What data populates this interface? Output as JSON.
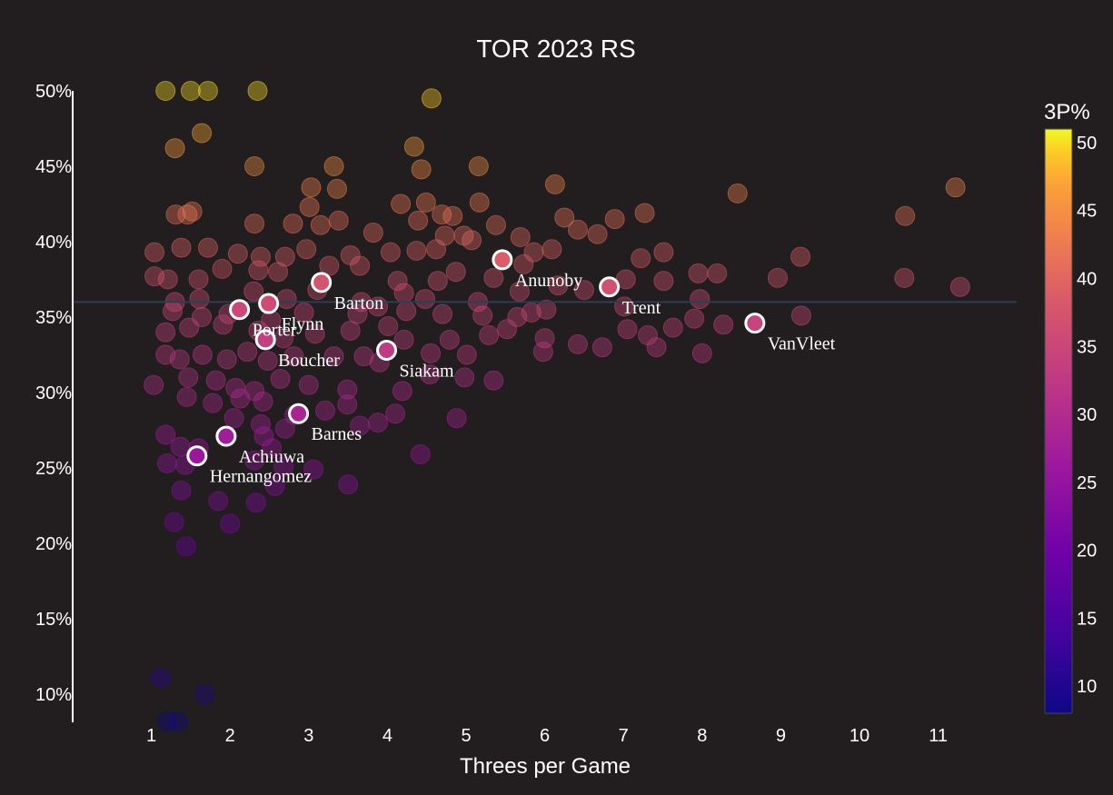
{
  "chart_data": {
    "type": "scatter",
    "title": "TOR 2023 RS",
    "xlabel": "Threes per Game",
    "ylabel": "",
    "xlim": [
      0,
      12
    ],
    "ylim": [
      8,
      50
    ],
    "x_ticks": [
      1,
      2,
      3,
      4,
      5,
      6,
      7,
      8,
      9,
      10,
      11
    ],
    "y_ticks": [
      10,
      15,
      20,
      25,
      30,
      35,
      40,
      45,
      50
    ],
    "y_tick_labels": [
      "10%",
      "15%",
      "20%",
      "25%",
      "30%",
      "35%",
      "40%",
      "45%",
      "50%"
    ],
    "reference_line_y": 36,
    "colorscale": "plasma",
    "colorbar": {
      "title": "3P%",
      "range": [
        8,
        51
      ],
      "ticks": [
        10,
        15,
        20,
        25,
        30,
        35,
        40,
        45,
        50
      ]
    },
    "highlighted": [
      {
        "name": "Anunoby",
        "x": 5.46,
        "y": 38.8
      },
      {
        "name": "Barton",
        "x": 3.16,
        "y": 37.3
      },
      {
        "name": "Trent",
        "x": 6.82,
        "y": 37.0
      },
      {
        "name": "Porter",
        "x": 2.12,
        "y": 35.5
      },
      {
        "name": "Flynn",
        "x": 2.49,
        "y": 35.9
      },
      {
        "name": "VanVleet",
        "x": 8.67,
        "y": 34.6
      },
      {
        "name": "Boucher",
        "x": 2.45,
        "y": 33.5
      },
      {
        "name": "Siakam",
        "x": 3.99,
        "y": 32.8
      },
      {
        "name": "Barnes",
        "x": 2.87,
        "y": 28.6
      },
      {
        "name": "Achiuwa",
        "x": 1.95,
        "y": 27.1
      },
      {
        "name": "Hernangomez",
        "x": 1.58,
        "y": 25.8
      }
    ],
    "background_points": [
      [
        1.18,
        50
      ],
      [
        1.5,
        50
      ],
      [
        1.72,
        50
      ],
      [
        2.35,
        50
      ],
      [
        4.56,
        49.5
      ],
      [
        1.3,
        46.2
      ],
      [
        1.64,
        47.2
      ],
      [
        2.31,
        45.0
      ],
      [
        4.34,
        46.3
      ],
      [
        4.43,
        44.8
      ],
      [
        5.16,
        45
      ],
      [
        6.13,
        43.8
      ],
      [
        8.45,
        43.2
      ],
      [
        11.22,
        43.6
      ],
      [
        10.58,
        41.7
      ],
      [
        3.03,
        43.6
      ],
      [
        3.32,
        45
      ],
      [
        3.36,
        43.5
      ],
      [
        4.17,
        42.5
      ],
      [
        4.49,
        42.6
      ],
      [
        5.17,
        42.6
      ],
      [
        3.01,
        42.3
      ],
      [
        4.69,
        41.8
      ],
      [
        4.83,
        41.7
      ],
      [
        6.25,
        41.6
      ],
      [
        6.89,
        41.5
      ],
      [
        7.27,
        41.9
      ],
      [
        1.31,
        41.8
      ],
      [
        1.52,
        42.0
      ],
      [
        1.46,
        41.8
      ],
      [
        2.31,
        41.2
      ],
      [
        2.8,
        41.2
      ],
      [
        3.15,
        41.1
      ],
      [
        3.38,
        41.4
      ],
      [
        3.82,
        40.6
      ],
      [
        4.39,
        41.4
      ],
      [
        4.73,
        40.4
      ],
      [
        4.97,
        40.4
      ],
      [
        5.38,
        41.1
      ],
      [
        5.69,
        40.3
      ],
      [
        6.42,
        40.8
      ],
      [
        6.67,
        40.5
      ],
      [
        1.04,
        39.3
      ],
      [
        1.38,
        39.6
      ],
      [
        1.72,
        39.6
      ],
      [
        2.1,
        39.2
      ],
      [
        2.39,
        39.0
      ],
      [
        2.7,
        39.0
      ],
      [
        2.97,
        39.5
      ],
      [
        3.53,
        39.1
      ],
      [
        4.04,
        39.3
      ],
      [
        4.37,
        39.4
      ],
      [
        4.62,
        39.5
      ],
      [
        5.07,
        40.1
      ],
      [
        5.86,
        39.3
      ],
      [
        6.09,
        39.5
      ],
      [
        7.22,
        38.9
      ],
      [
        7.51,
        39.3
      ],
      [
        9.25,
        39.0
      ],
      [
        1.04,
        37.7
      ],
      [
        1.21,
        37.5
      ],
      [
        1.6,
        37.5
      ],
      [
        1.9,
        38.2
      ],
      [
        2.36,
        38.1
      ],
      [
        2.61,
        38.0
      ],
      [
        3.26,
        38.4
      ],
      [
        3.65,
        38.4
      ],
      [
        4.13,
        37.4
      ],
      [
        4.64,
        37.4
      ],
      [
        4.87,
        38.0
      ],
      [
        5.35,
        37.6
      ],
      [
        5.73,
        38.5
      ],
      [
        6.17,
        37.1
      ],
      [
        7.03,
        37.5
      ],
      [
        7.51,
        37.4
      ],
      [
        7.95,
        37.9
      ],
      [
        8.19,
        37.9
      ],
      [
        8.96,
        37.6
      ],
      [
        10.57,
        37.6
      ],
      [
        11.28,
        37.0
      ],
      [
        1.3,
        36.0
      ],
      [
        1.61,
        36.2
      ],
      [
        2.3,
        36.7
      ],
      [
        2.72,
        36.2
      ],
      [
        3.11,
        36.8
      ],
      [
        3.67,
        36.0
      ],
      [
        4.21,
        36.6
      ],
      [
        4.48,
        36.2
      ],
      [
        5.15,
        36.0
      ],
      [
        5.68,
        36.7
      ],
      [
        6.5,
        36.8
      ],
      [
        7.01,
        35.7
      ],
      [
        7.97,
        36.2
      ],
      [
        9.26,
        35.1
      ],
      [
        1.27,
        35.4
      ],
      [
        1.64,
        35.0
      ],
      [
        1.98,
        35.2
      ],
      [
        2.52,
        34.8
      ],
      [
        2.94,
        35.3
      ],
      [
        3.62,
        35.2
      ],
      [
        3.88,
        35.7
      ],
      [
        4.24,
        35.4
      ],
      [
        4.7,
        35.2
      ],
      [
        5.21,
        35.1
      ],
      [
        5.65,
        35.0
      ],
      [
        5.83,
        35.3
      ],
      [
        6.02,
        35.5
      ],
      [
        7.05,
        34.2
      ],
      [
        7.9,
        34.9
      ],
      [
        8.27,
        34.5
      ],
      [
        1.18,
        34.0
      ],
      [
        1.48,
        34.3
      ],
      [
        1.91,
        34.5
      ],
      [
        2.36,
        34.1
      ],
      [
        2.68,
        33.6
      ],
      [
        3.08,
        33.9
      ],
      [
        3.53,
        34.1
      ],
      [
        4.01,
        34.4
      ],
      [
        4.21,
        33.5
      ],
      [
        4.79,
        33.5
      ],
      [
        5.29,
        33.8
      ],
      [
        5.52,
        34.2
      ],
      [
        6.0,
        33.6
      ],
      [
        6.42,
        33.2
      ],
      [
        6.73,
        33.0
      ],
      [
        7.31,
        33.8
      ],
      [
        7.63,
        34.3
      ],
      [
        1.18,
        32.5
      ],
      [
        1.36,
        32.2
      ],
      [
        1.65,
        32.5
      ],
      [
        1.96,
        32.2
      ],
      [
        2.22,
        32.7
      ],
      [
        2.48,
        32.1
      ],
      [
        2.81,
        32.4
      ],
      [
        3.32,
        32.4
      ],
      [
        3.7,
        32.4
      ],
      [
        3.9,
        32.0
      ],
      [
        4.55,
        32.6
      ],
      [
        5.01,
        32.5
      ],
      [
        5.98,
        32.7
      ],
      [
        7.42,
        33.0
      ],
      [
        8.0,
        32.6
      ],
      [
        1.03,
        30.5
      ],
      [
        1.47,
        31.0
      ],
      [
        1.82,
        30.8
      ],
      [
        2.07,
        30.3
      ],
      [
        2.31,
        30.1
      ],
      [
        2.64,
        30.9
      ],
      [
        3.0,
        30.5
      ],
      [
        3.49,
        30.2
      ],
      [
        4.19,
        30.1
      ],
      [
        4.54,
        31.2
      ],
      [
        4.98,
        31.0
      ],
      [
        5.35,
        30.8
      ],
      [
        1.45,
        29.7
      ],
      [
        1.78,
        29.3
      ],
      [
        2.13,
        29.6
      ],
      [
        2.42,
        29.4
      ],
      [
        2.82,
        28.5
      ],
      [
        3.21,
        28.8
      ],
      [
        3.49,
        29.2
      ],
      [
        4.1,
        28.6
      ],
      [
        4.88,
        28.3
      ],
      [
        2.05,
        28.3
      ],
      [
        2.39,
        27.9
      ],
      [
        2.7,
        27.6
      ],
      [
        3.65,
        27.8
      ],
      [
        3.88,
        28.0
      ],
      [
        1.18,
        27.2
      ],
      [
        1.37,
        26.4
      ],
      [
        1.6,
        26.3
      ],
      [
        2.43,
        27.1
      ],
      [
        2.53,
        26.3
      ],
      [
        4.42,
        25.9
      ],
      [
        1.2,
        25.3
      ],
      [
        1.43,
        25.2
      ],
      [
        2.31,
        25.5
      ],
      [
        2.68,
        25.1
      ],
      [
        3.06,
        24.9
      ],
      [
        1.38,
        23.5
      ],
      [
        1.85,
        22.8
      ],
      [
        2.33,
        22.7
      ],
      [
        2.57,
        23.8
      ],
      [
        3.5,
        23.9
      ],
      [
        1.29,
        21.4
      ],
      [
        2.0,
        21.3
      ],
      [
        1.44,
        19.8
      ],
      [
        1.12,
        11.1
      ],
      [
        1.68,
        10.0
      ],
      [
        1.2,
        8.2
      ],
      [
        1.34,
        8.2
      ]
    ]
  }
}
